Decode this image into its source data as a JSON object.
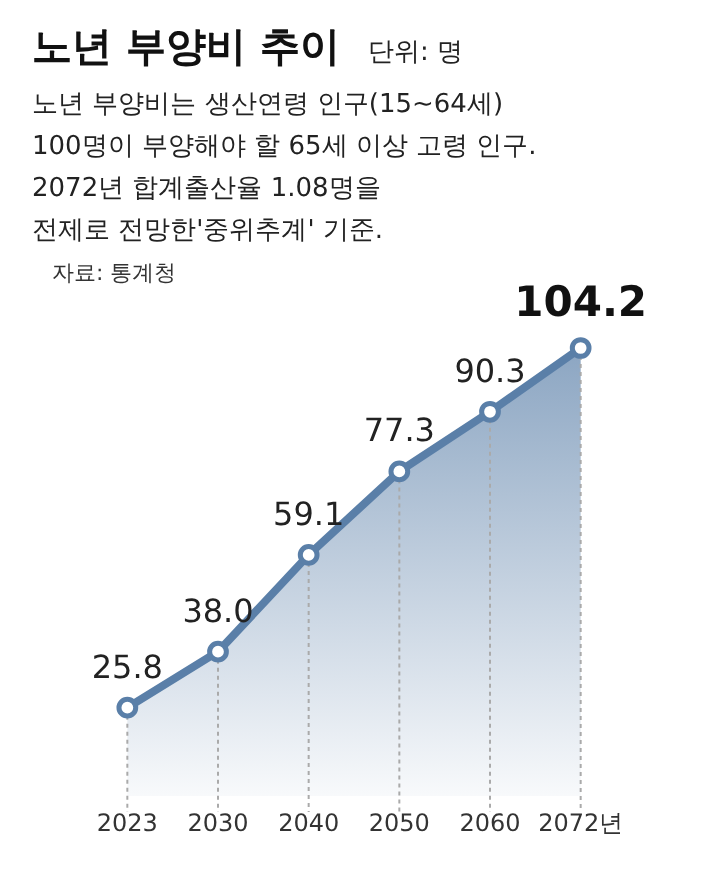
{
  "chart_data": {
    "type": "area",
    "title": "노년 부양비 추이",
    "subtitle": [
      "노년 부양비는 생산연령 인구(15~64세)",
      "100명이 부양해야 할 65세 이상 고령 인구.",
      "2072년 합계출산율 1.08명을",
      "전제로 전망한'중위추계' 기준."
    ],
    "annotations": [
      "단위: 명",
      "자료: 통계청"
    ],
    "categories": [
      "2023",
      "2030",
      "2040",
      "2050",
      "2060",
      "2072년"
    ],
    "series": [
      {
        "color": "#5a7fa8",
        "values": [
          25.8,
          38.0,
          59.1,
          77.3,
          90.3,
          104.2
        ],
        "value_labels": [
          "25.8",
          "38.0",
          "59.1",
          "77.3",
          "90.3",
          "104.2"
        ]
      }
    ],
    "marker": "circle",
    "grid": "x"
  }
}
